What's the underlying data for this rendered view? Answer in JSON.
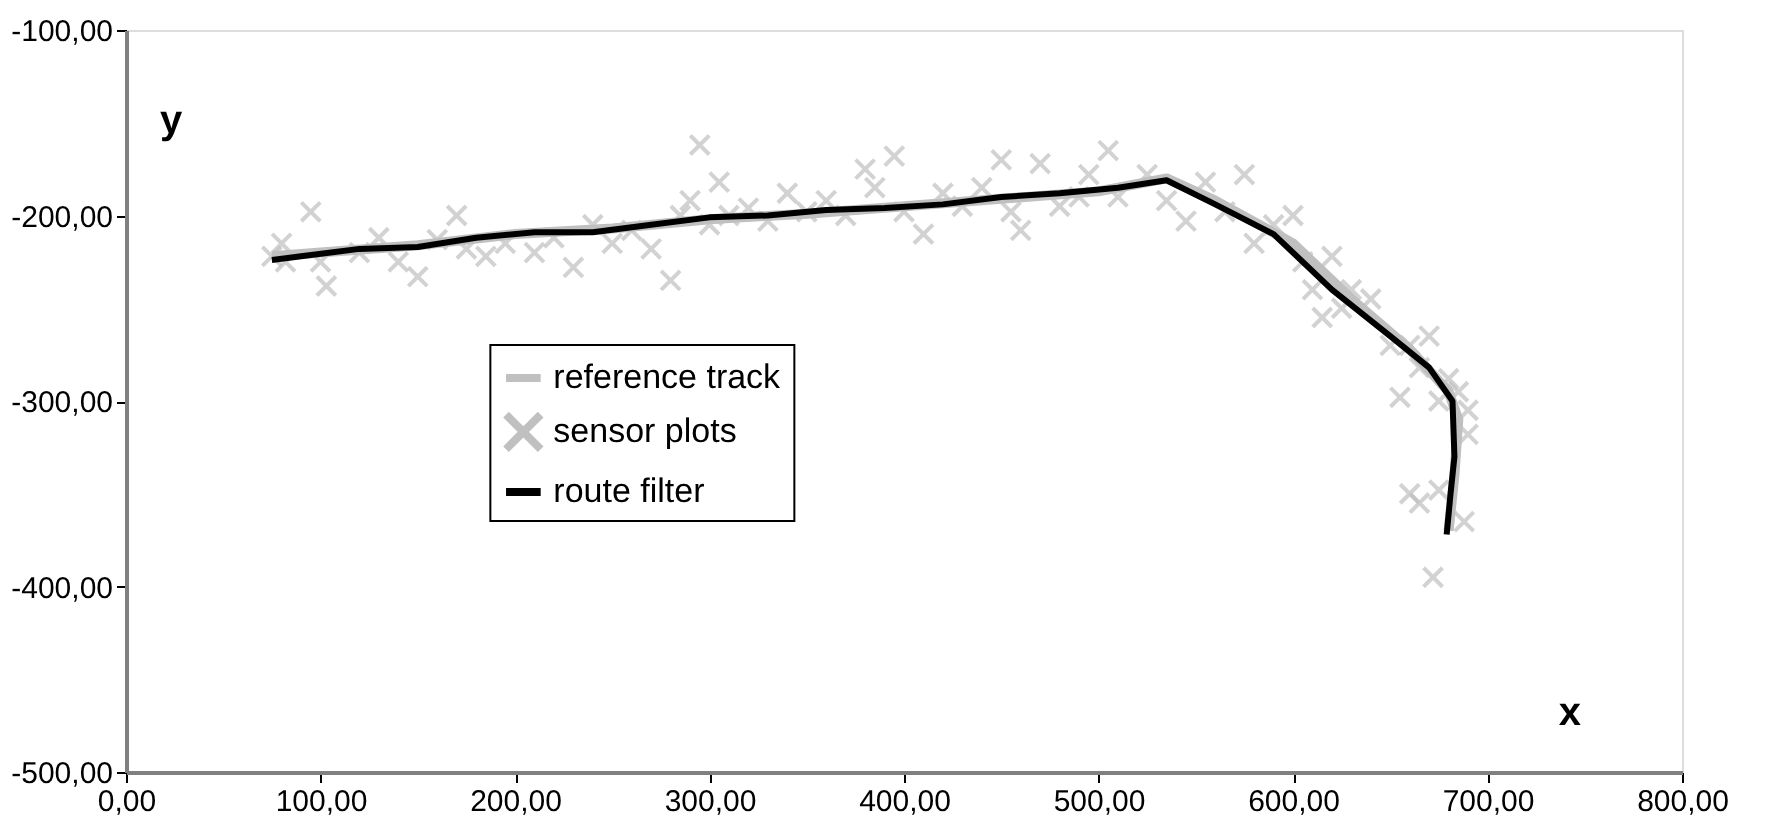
{
  "chart_data": {
    "type": "line",
    "xlabel": "x",
    "ylabel": "y",
    "xlim": [
      0,
      800
    ],
    "ylim": [
      -500,
      -100
    ],
    "xticks": [
      {
        "value": 0,
        "label": "0,00"
      },
      {
        "value": 100,
        "label": "100,00"
      },
      {
        "value": 200,
        "label": "200,00"
      },
      {
        "value": 300,
        "label": "300,00"
      },
      {
        "value": 400,
        "label": "400,00"
      },
      {
        "value": 500,
        "label": "500,00"
      },
      {
        "value": 600,
        "label": "600,00"
      },
      {
        "value": 700,
        "label": "700,00"
      },
      {
        "value": 800,
        "label": "800,00"
      }
    ],
    "yticks": [
      {
        "value": -500,
        "label": "-500,00"
      },
      {
        "value": -400,
        "label": "-400,00"
      },
      {
        "value": -300,
        "label": "-300,00"
      },
      {
        "value": -200,
        "label": "-200,00"
      },
      {
        "value": -100,
        "label": "-100,00"
      }
    ],
    "grid": false,
    "legend": "center",
    "series": [
      {
        "name": "reference track",
        "color": "#c0c0c0",
        "marker": "none",
        "x": [
          75,
          100,
          150,
          200,
          250,
          300,
          350,
          400,
          450,
          500,
          535,
          560,
          600,
          630,
          660,
          680,
          685,
          683,
          680
        ],
        "values": [
          -222,
          -220,
          -216,
          -210,
          -207,
          -202,
          -199,
          -195,
          -191,
          -187,
          -180,
          -192,
          -215,
          -245,
          -272,
          -295,
          -310,
          -340,
          -370
        ]
      },
      {
        "name": "sensor plots",
        "type": "scatter",
        "color": "#c0c0c0",
        "marker": "cross",
        "x": [
          75,
          80,
          82,
          95,
          100,
          103,
          120,
          130,
          140,
          150,
          160,
          170,
          175,
          185,
          195,
          210,
          220,
          230,
          240,
          250,
          260,
          270,
          280,
          285,
          290,
          295,
          300,
          305,
          310,
          320,
          330,
          340,
          350,
          360,
          370,
          380,
          385,
          395,
          400,
          410,
          420,
          430,
          440,
          450,
          455,
          460,
          470,
          480,
          490,
          495,
          505,
          510,
          525,
          535,
          545,
          555,
          565,
          575,
          580,
          590,
          600,
          605,
          610,
          615,
          620,
          625,
          630,
          640,
          650,
          655,
          660,
          665,
          670,
          675,
          675,
          680,
          685,
          690,
          688,
          672,
          665,
          660,
          690
        ],
        "values": [
          -222,
          -215,
          -225,
          -198,
          -225,
          -238,
          -220,
          -212,
          -225,
          -233,
          -213,
          -200,
          -218,
          -222,
          -215,
          -220,
          -212,
          -228,
          -205,
          -215,
          -208,
          -218,
          -235,
          -200,
          -192,
          -162,
          -205,
          -182,
          -200,
          -196,
          -203,
          -188,
          -198,
          -192,
          -200,
          -175,
          -185,
          -168,
          -198,
          -210,
          -188,
          -195,
          -185,
          -170,
          -198,
          -208,
          -172,
          -195,
          -190,
          -178,
          -165,
          -190,
          -178,
          -192,
          -203,
          -182,
          -198,
          -178,
          -215,
          -205,
          -200,
          -225,
          -240,
          -255,
          -222,
          -250,
          -240,
          -245,
          -270,
          -298,
          -270,
          -282,
          -265,
          -300,
          -348,
          -288,
          -295,
          -318,
          -365,
          -395,
          -355,
          -350,
          -305
        ]
      },
      {
        "name": "route filter",
        "color": "#000000",
        "marker": "none",
        "x": [
          75,
          90,
          120,
          150,
          180,
          210,
          240,
          270,
          300,
          330,
          360,
          390,
          420,
          450,
          480,
          510,
          535,
          560,
          590,
          620,
          650,
          670,
          682,
          683,
          681,
          679
        ],
        "values": [
          -224,
          -222,
          -218,
          -217,
          -212,
          -209,
          -209,
          -205,
          -201,
          -200,
          -197,
          -196,
          -194,
          -190,
          -188,
          -185,
          -181,
          -194,
          -210,
          -240,
          -265,
          -282,
          -300,
          -330,
          -350,
          -372
        ]
      }
    ]
  }
}
